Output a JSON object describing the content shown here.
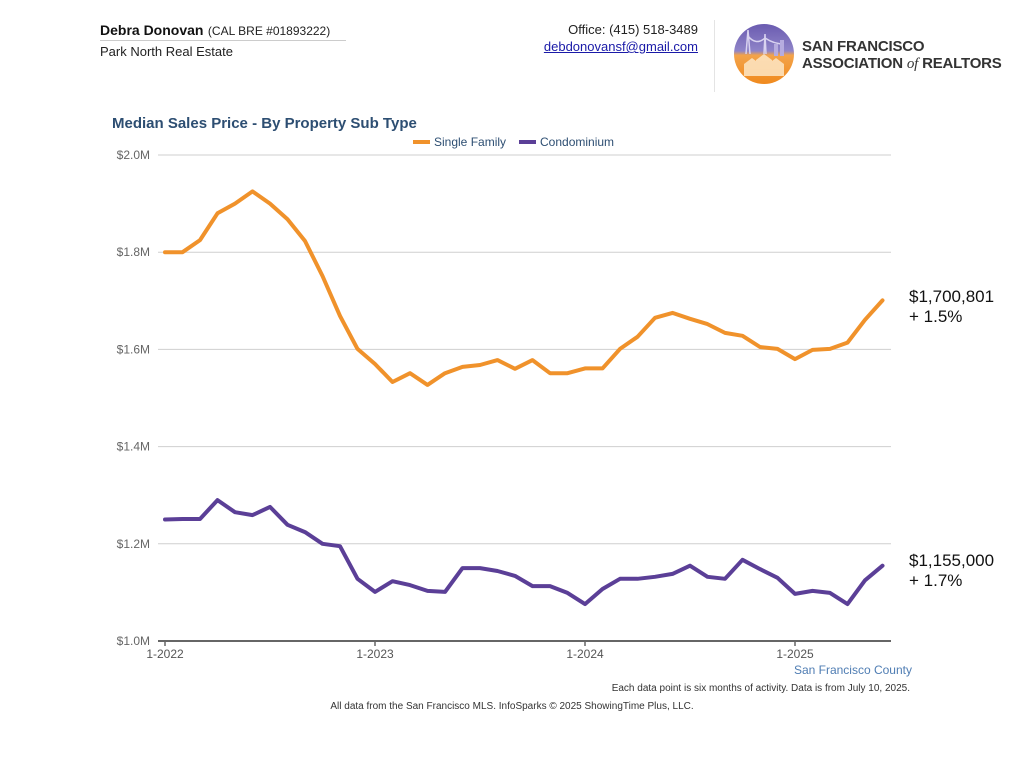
{
  "header": {
    "agent_name": "Debra Donovan",
    "license": "(CAL BRE #01893222)",
    "company": "Park North Real Estate",
    "office_phone": "Office: (415) 518-3489",
    "email": "debdonovansf@gmail.com",
    "logo_line1": "San Francisco",
    "logo_line2_a": "Association ",
    "logo_line2_of": "of",
    "logo_line2_b": " Realtors",
    "logo_icon": "golden-gate-houses-logo"
  },
  "chart_data": {
    "type": "line",
    "title": "Median Sales Price - By Property Sub Type",
    "xlabel": "",
    "ylabel": "",
    "ylim": [
      1000000,
      2000000
    ],
    "yticks": [
      {
        "value": 2000000,
        "label": "$2.0M"
      },
      {
        "value": 1800000,
        "label": "$1.8M"
      },
      {
        "value": 1600000,
        "label": "$1.6M"
      },
      {
        "value": 1400000,
        "label": "$1.4M"
      },
      {
        "value": 1200000,
        "label": "$1.2M"
      },
      {
        "value": 1000000,
        "label": "$1.0M"
      }
    ],
    "xticks": [
      {
        "index": 0,
        "label": "1-2022"
      },
      {
        "index": 12,
        "label": "1-2023"
      },
      {
        "index": 24,
        "label": "1-2024"
      },
      {
        "index": 36,
        "label": "1-2025"
      }
    ],
    "x_start": "1-2022",
    "x_step": "1 month",
    "grid": true,
    "legend_position": "top-center",
    "series": [
      {
        "name": "Single Family",
        "color": "#f0922b",
        "values": [
          1800000,
          1800000,
          1825000,
          1880000,
          1900000,
          1925000,
          1900000,
          1868000,
          1823000,
          1751000,
          1669000,
          1601000,
          1570000,
          1533000,
          1551000,
          1527000,
          1551000,
          1564000,
          1568000,
          1578000,
          1560000,
          1578000,
          1551000,
          1551000,
          1561000,
          1561000,
          1601000,
          1626000,
          1665000,
          1675000,
          1663000,
          1652000,
          1634000,
          1628000,
          1605000,
          1601000,
          1580000,
          1599000,
          1601000,
          1614000,
          1661000,
          1700801
        ],
        "end_label": "$1,700,801",
        "end_change": "+ 1.5%"
      },
      {
        "name": "Condominium",
        "color": "#5b3f97",
        "values": [
          1250000,
          1251000,
          1251000,
          1290000,
          1265000,
          1259000,
          1276000,
          1239000,
          1224000,
          1200000,
          1195000,
          1128000,
          1101000,
          1123000,
          1115000,
          1103000,
          1101000,
          1150000,
          1150000,
          1144000,
          1134000,
          1113000,
          1113000,
          1099000,
          1076000,
          1107000,
          1128000,
          1128000,
          1132000,
          1138000,
          1155000,
          1132000,
          1128000,
          1167000,
          1148000,
          1130000,
          1097000,
          1103000,
          1099000,
          1076000,
          1125000,
          1155000
        ],
        "end_label": "$1,155,000",
        "end_change": "+ 1.7%"
      }
    ],
    "region_label": "San Francisco County",
    "note": "Each data point is six months of activity. Data is from July 10, 2025."
  },
  "footer": {
    "source": "All data from the San Francisco MLS. InfoSparks © 2025 ShowingTime Plus, LLC."
  }
}
